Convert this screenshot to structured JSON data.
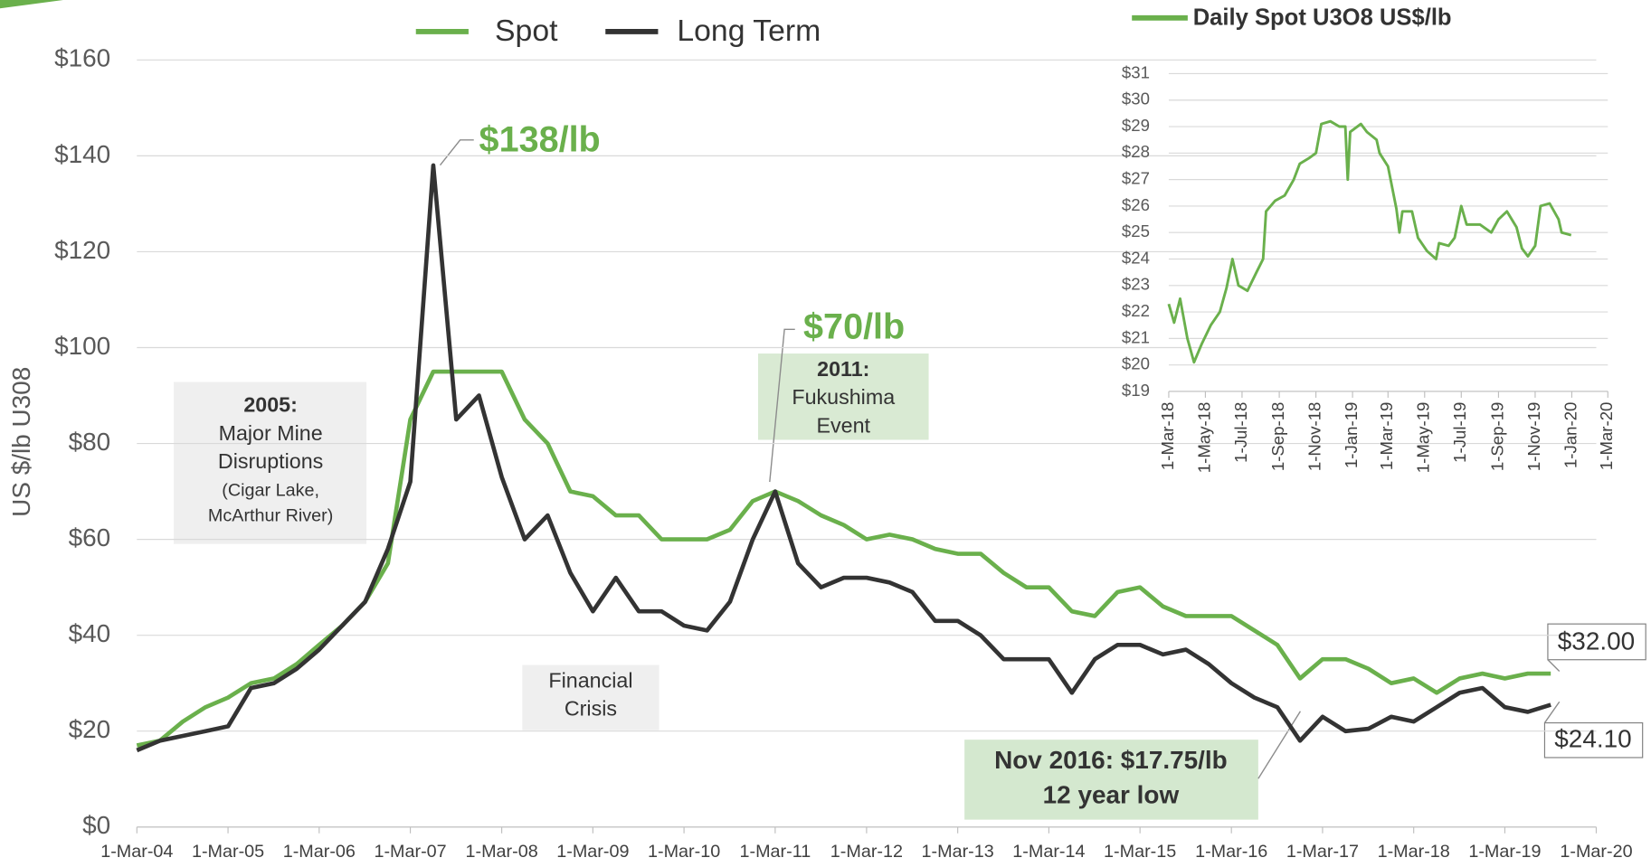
{
  "chart_data": [
    {
      "type": "line",
      "ylabel": "US $/lb U308",
      "x": [
        "2004-03-01",
        "2004-06-01",
        "2004-09-01",
        "2004-12-01",
        "2005-03-01",
        "2005-06-01",
        "2005-09-01",
        "2005-12-01",
        "2006-03-01",
        "2006-06-01",
        "2006-09-01",
        "2006-12-01",
        "2007-03-01",
        "2007-06-01",
        "2007-09-01",
        "2007-12-01",
        "2008-03-01",
        "2008-06-01",
        "2008-09-01",
        "2008-12-01",
        "2009-03-01",
        "2009-06-01",
        "2009-09-01",
        "2009-12-01",
        "2010-03-01",
        "2010-06-01",
        "2010-09-01",
        "2010-12-01",
        "2011-03-01",
        "2011-06-01",
        "2011-09-01",
        "2011-12-01",
        "2012-03-01",
        "2012-06-01",
        "2012-09-01",
        "2012-12-01",
        "2013-03-01",
        "2013-06-01",
        "2013-09-01",
        "2013-12-01",
        "2014-03-01",
        "2014-06-01",
        "2014-09-01",
        "2014-12-01",
        "2015-03-01",
        "2015-06-01",
        "2015-09-01",
        "2015-12-01",
        "2016-03-01",
        "2016-06-01",
        "2016-09-01",
        "2016-12-01",
        "2017-03-01",
        "2017-06-01",
        "2017-09-01",
        "2017-12-01",
        "2018-03-01",
        "2018-06-01",
        "2018-09-01",
        "2018-12-01",
        "2019-03-01",
        "2019-06-01",
        "2019-09-01"
      ],
      "series": [
        {
          "name": "Spot",
          "color": "#6ab04c",
          "values": [
            17,
            18,
            22,
            25,
            27,
            30,
            31,
            34,
            38,
            42,
            47,
            55,
            85,
            95,
            95,
            95,
            95,
            85,
            80,
            70,
            69,
            65,
            65,
            60,
            60,
            60,
            62,
            68,
            70,
            68,
            65,
            63,
            60,
            61,
            60,
            58,
            57,
            57,
            53,
            50,
            50,
            45,
            44,
            49,
            50,
            46,
            44,
            44,
            44,
            41,
            38,
            31,
            35,
            35,
            33,
            30,
            31,
            28,
            31,
            32,
            31,
            32,
            32
          ]
        },
        {
          "name": "Long Term",
          "color": "#333333",
          "values": [
            16,
            18,
            19,
            20,
            21,
            29,
            30,
            33,
            37,
            42,
            47,
            58,
            72,
            138,
            85,
            90,
            73,
            60,
            65,
            53,
            45,
            52,
            45,
            45,
            42,
            41,
            47,
            60,
            70,
            55,
            50,
            52,
            52,
            51,
            49,
            43,
            43,
            40,
            35,
            35,
            35,
            28,
            35,
            38,
            38,
            36,
            37,
            34,
            30,
            27,
            25,
            18,
            23,
            20,
            20.5,
            23,
            22,
            25,
            28,
            29,
            25,
            24,
            25.5
          ]
        }
      ],
      "xlim": [
        "2004-03-01",
        "2020-03-01"
      ],
      "xticks": [
        {
          "value": "2004-03-01",
          "label": "1-Mar-04"
        },
        {
          "value": "2005-03-01",
          "label": "1-Mar-05"
        },
        {
          "value": "2006-03-01",
          "label": "1-Mar-06"
        },
        {
          "value": "2007-03-01",
          "label": "1-Mar-07"
        },
        {
          "value": "2008-03-01",
          "label": "1-Mar-08"
        },
        {
          "value": "2009-03-01",
          "label": "1-Mar-09"
        },
        {
          "value": "2010-03-01",
          "label": "1-Mar-10"
        },
        {
          "value": "2011-03-01",
          "label": "1-Mar-11"
        },
        {
          "value": "2012-03-01",
          "label": "1-Mar-12"
        },
        {
          "value": "2013-03-01",
          "label": "1-Mar-13"
        },
        {
          "value": "2014-03-01",
          "label": "1-Mar-14"
        },
        {
          "value": "2015-03-01",
          "label": "1-Mar-15"
        },
        {
          "value": "2016-03-01",
          "label": "1-Mar-16"
        },
        {
          "value": "2017-03-01",
          "label": "1-Mar-17"
        },
        {
          "value": "2018-03-01",
          "label": "1-Mar-18"
        },
        {
          "value": "2019-03-01",
          "label": "1-Mar-19"
        },
        {
          "value": "2020-03-01",
          "label": "1-Mar-20"
        }
      ],
      "ylim": [
        0,
        160
      ],
      "yticks": [
        {
          "value": 0,
          "label": "$0"
        },
        {
          "value": 20,
          "label": "$20"
        },
        {
          "value": 40,
          "label": "$40"
        },
        {
          "value": 60,
          "label": "$60"
        },
        {
          "value": 80,
          "label": "$80"
        },
        {
          "value": 100,
          "label": "$100"
        },
        {
          "value": 120,
          "label": "$120"
        },
        {
          "value": 140,
          "label": "$140"
        },
        {
          "value": 160,
          "label": "$160"
        }
      ],
      "grid": true,
      "annotations": [
        "$138/lb",
        "$70/lb",
        "2005:",
        "Major Mine",
        "Disruptions",
        "(Cigar Lake,",
        "McArthur River)",
        "2011:",
        "Fukushima",
        "Event",
        "Financial",
        "Crisis",
        "Nov 2016: $17.75/lb",
        "12 year low",
        "$32.00",
        "$24.10"
      ]
    },
    {
      "type": "line",
      "x": [
        "2018-03-01",
        "2018-03-10",
        "2018-03-20",
        "2018-04-01",
        "2018-04-12",
        "2018-04-25",
        "2018-05-10",
        "2018-05-25",
        "2018-06-05",
        "2018-06-15",
        "2018-06-25",
        "2018-07-10",
        "2018-07-25",
        "2018-08-05",
        "2018-08-10",
        "2018-08-25",
        "2018-09-10",
        "2018-09-25",
        "2018-10-05",
        "2018-10-20",
        "2018-11-01",
        "2018-11-10",
        "2018-11-25",
        "2018-12-10",
        "2018-12-20",
        "2018-12-24",
        "2018-12-28",
        "2019-01-15",
        "2019-01-25",
        "2019-02-10",
        "2019-02-15",
        "2019-03-01",
        "2019-03-15",
        "2019-03-20",
        "2019-03-25",
        "2019-04-10",
        "2019-04-20",
        "2019-05-05",
        "2019-05-20",
        "2019-05-25",
        "2019-06-10",
        "2019-06-20",
        "2019-07-01",
        "2019-07-10",
        "2019-08-01",
        "2019-08-20",
        "2019-09-01",
        "2019-09-15",
        "2019-10-01",
        "2019-10-10",
        "2019-10-20",
        "2019-11-01",
        "2019-11-10",
        "2019-11-25",
        "2019-12-10",
        "2019-12-15",
        "2019-12-31"
      ],
      "series": [
        {
          "name": "Daily Spot U3O8 US$/lb",
          "color": "#6ab04c",
          "values": [
            22.3,
            21.6,
            22.5,
            21.0,
            20.1,
            20.8,
            21.5,
            22.0,
            22.9,
            24.0,
            23.0,
            22.8,
            23.5,
            24.0,
            25.8,
            26.2,
            26.4,
            27.0,
            27.6,
            27.8,
            28.0,
            29.1,
            29.2,
            29.0,
            29.0,
            27.0,
            28.8,
            29.1,
            28.8,
            28.5,
            28.0,
            27.5,
            25.9,
            25.0,
            25.8,
            25.8,
            24.8,
            24.3,
            24.0,
            24.6,
            24.5,
            24.8,
            26.0,
            25.3,
            25.3,
            25.0,
            25.5,
            25.8,
            25.2,
            24.4,
            24.1,
            24.5,
            26.0,
            26.1,
            25.5,
            25.0,
            24.9
          ]
        }
      ],
      "xlim": [
        "2018-03-01",
        "2020-03-01"
      ],
      "xticks": [
        {
          "value": "2018-03-01",
          "label": "1-Mar-18"
        },
        {
          "value": "2018-05-01",
          "label": "1-May-18"
        },
        {
          "value": "2018-07-01",
          "label": "1-Jul-18"
        },
        {
          "value": "2018-09-01",
          "label": "1-Sep-18"
        },
        {
          "value": "2018-11-01",
          "label": "1-Nov-18"
        },
        {
          "value": "2019-01-01",
          "label": "1-Jan-19"
        },
        {
          "value": "2019-03-01",
          "label": "1-Mar-19"
        },
        {
          "value": "2019-05-01",
          "label": "1-May-19"
        },
        {
          "value": "2019-07-01",
          "label": "1-Jul-19"
        },
        {
          "value": "2019-09-01",
          "label": "1-Sep-19"
        },
        {
          "value": "2019-11-01",
          "label": "1-Nov-19"
        },
        {
          "value": "2020-01-01",
          "label": "1-Jan-20"
        },
        {
          "value": "2020-03-01",
          "label": "1-Mar-20"
        }
      ],
      "ylim": [
        19,
        31
      ],
      "yticks": [
        {
          "value": 19,
          "label": "$19"
        },
        {
          "value": 20,
          "label": "$20"
        },
        {
          "value": 21,
          "label": "$21"
        },
        {
          "value": 22,
          "label": "$22"
        },
        {
          "value": 23,
          "label": "$23"
        },
        {
          "value": 24,
          "label": "$24"
        },
        {
          "value": 25,
          "label": "$25"
        },
        {
          "value": 26,
          "label": "$26"
        },
        {
          "value": 27,
          "label": "$27"
        },
        {
          "value": 28,
          "label": "$28"
        },
        {
          "value": 29,
          "label": "$29"
        },
        {
          "value": 30,
          "label": "$30"
        },
        {
          "value": 31,
          "label": "$31"
        }
      ],
      "grid": true
    }
  ]
}
